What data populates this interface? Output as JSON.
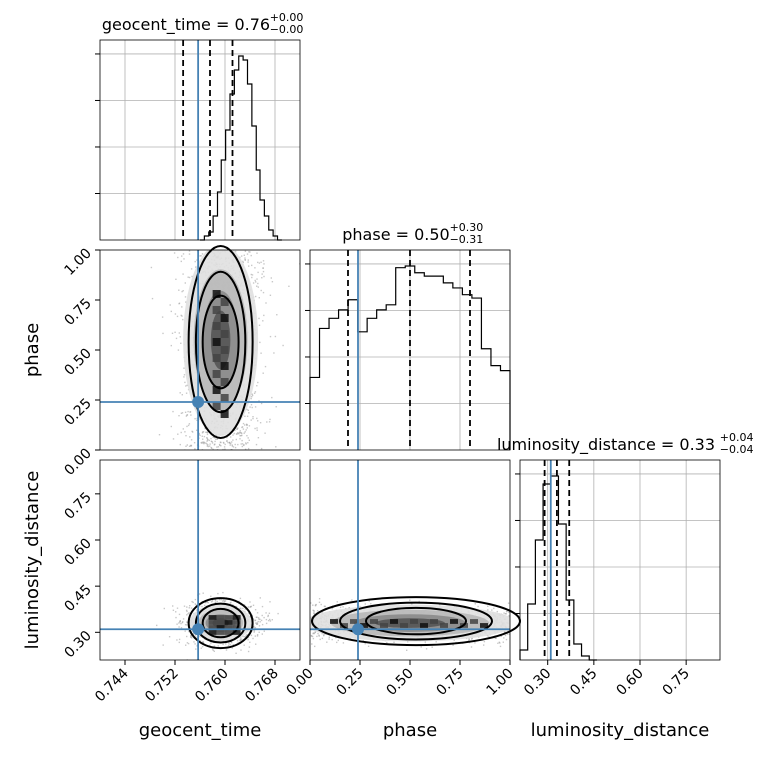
{
  "chart_data": {
    "type": "corner",
    "parameters": [
      {
        "name": "geocent_time",
        "range": [
          0.74,
          0.772
        ],
        "ticks": [
          0.744,
          0.752,
          0.76,
          0.768
        ],
        "tick_labels": [
          "0.744",
          "0.752",
          "0.760",
          "0.768"
        ],
        "truth": 0.7557,
        "quantiles": [
          0.7533,
          0.7576,
          0.7612
        ],
        "title": {
          "main": "geocent_time = 0.76",
          "plus": "+0.00",
          "minus": "−0.00"
        },
        "hist_edges": [
          0.756,
          0.7567,
          0.7574,
          0.7581,
          0.7588,
          0.7594,
          0.7601,
          0.7608,
          0.7615,
          0.7622,
          0.7629,
          0.7636,
          0.7643,
          0.765,
          0.7656,
          0.7663,
          0.767,
          0.7677,
          0.7684,
          0.7691
        ],
        "hist_counts": [
          0,
          2,
          4,
          12,
          24,
          40,
          55,
          73,
          85,
          92,
          90,
          78,
          57,
          35,
          20,
          12,
          5,
          2,
          0
        ]
      },
      {
        "name": "phase",
        "range": [
          0.0,
          1.0
        ],
        "ticks": [
          0.0,
          0.25,
          0.5,
          0.75,
          1.0
        ],
        "tick_labels": [
          "0.00",
          "0.25",
          "0.50",
          "0.75",
          "1.00"
        ],
        "truth": 0.24,
        "quantiles": [
          0.19,
          0.5,
          0.8
        ],
        "title": {
          "main": "phase = 0.50",
          "plus": "+0.30",
          "minus": "−0.31"
        },
        "hist_counts": [
          43,
          72,
          78,
          83,
          89,
          70,
          78,
          83,
          86,
          108,
          109,
          105,
          103,
          103,
          99,
          96,
          92,
          90,
          60,
          50,
          47
        ]
      },
      {
        "name": "luminosity_distance",
        "range": [
          0.21,
          0.86
        ],
        "ticks": [
          0.3,
          0.45,
          0.6,
          0.75
        ],
        "tick_labels": [
          "0.30",
          "0.45",
          "0.60",
          "0.75"
        ],
        "truth": 0.31,
        "quantiles": [
          0.29,
          0.33,
          0.37
        ],
        "title": {
          "main": "luminosity_distance = 0.33",
          "plus": "+0.04",
          "minus": "−0.04"
        },
        "hist_edges": [
          0.21,
          0.235,
          0.26,
          0.285,
          0.31,
          0.335,
          0.36,
          0.385,
          0.41,
          0.435,
          0.46
        ],
        "hist_counts": [
          5,
          28,
          60,
          88,
          92,
          68,
          30,
          8,
          2,
          0
        ]
      }
    ],
    "pairs": [
      {
        "x": "geocent_time",
        "y": "phase",
        "center": [
          0.7593,
          0.48
        ],
        "spread": [
          0.003,
          0.26
        ]
      },
      {
        "x": "geocent_time",
        "y": "luminosity_distance",
        "center": [
          0.7593,
          0.33
        ],
        "spread": [
          0.0025,
          0.03
        ]
      },
      {
        "x": "phase",
        "y": "luminosity_distance",
        "center": [
          0.5,
          0.33
        ],
        "spread": [
          0.32,
          0.03
        ]
      }
    ],
    "colors": {
      "truth": "#4682b4",
      "hist": "#000000",
      "grid": "#b0b0b0"
    },
    "grid": true
  }
}
